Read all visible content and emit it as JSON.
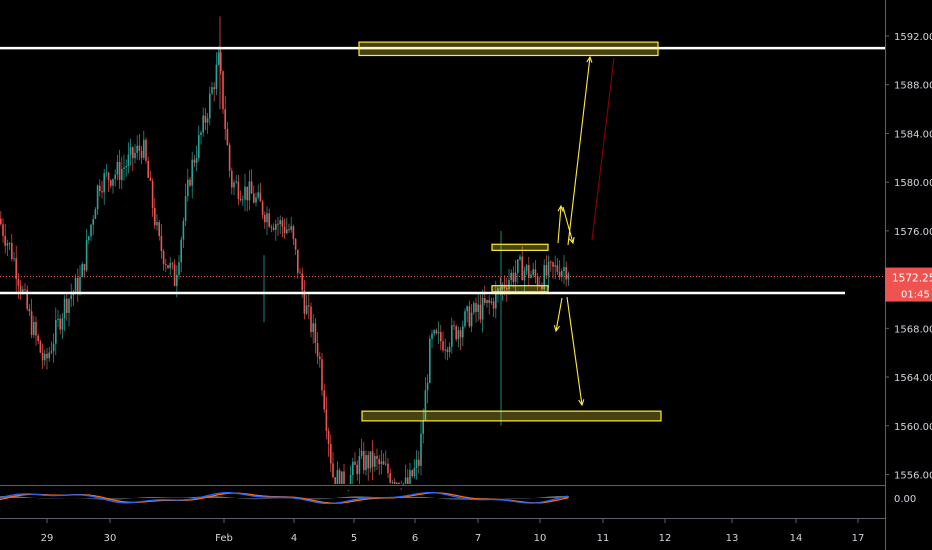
{
  "chart_data": [
    {
      "type": "candlestick",
      "price_axis": {
        "ticks": [
          1592.0,
          1588.0,
          1584.0,
          1580.0,
          1576.0,
          1572.0,
          1568.0,
          1564.0,
          1560.0,
          1556.0
        ],
        "tick_labels": [
          "1592.00",
          "1588.00",
          "1584.00",
          "1580.00",
          "1576.00",
          "1572.00",
          "1568.00",
          "1564.00",
          "1560.00",
          "1556.00"
        ],
        "range": [
          1554.6,
          1593.6
        ]
      },
      "time_axis": {
        "tick_labels": [
          "29",
          "30",
          "Feb",
          "4",
          "5",
          "6",
          "7",
          "10",
          "11",
          "12",
          "13",
          "14",
          "17"
        ]
      },
      "last_price": {
        "label": "1572.25",
        "value": 1572.25,
        "countdown": "01:45",
        "color": "#ef5350"
      },
      "horizontal_lines": [
        {
          "value": 1591.0,
          "color": "#ffffff"
        },
        {
          "value": 1570.9,
          "color": "#ffffff"
        }
      ],
      "zones": [
        {
          "from_date": "Feb 5",
          "to_date": "Feb 11",
          "low": 1590.4,
          "high": 1591.5,
          "color": "#ffeb3b"
        },
        {
          "from_date": "Feb 7",
          "to_date": "Feb 10",
          "low": 1574.4,
          "high": 1574.9,
          "color": "#ffeb3b"
        },
        {
          "from_date": "Feb 7",
          "to_date": "Feb 10",
          "low": 1571.0,
          "high": 1571.5,
          "color": "#ffeb3b"
        },
        {
          "from_date": "Feb 5",
          "to_date": "Feb 11",
          "low": 1560.4,
          "high": 1561.2,
          "color": "#ffeb3b"
        }
      ],
      "colors": {
        "up": "#26a69a",
        "down": "#ef5350",
        "background": "#000000",
        "grid": false
      }
    },
    {
      "type": "line",
      "indicator": "oscillator",
      "y_tick_labels": [
        "0.00"
      ],
      "series_colors": [
        "#2962ff",
        "#ff6d00"
      ]
    }
  ]
}
